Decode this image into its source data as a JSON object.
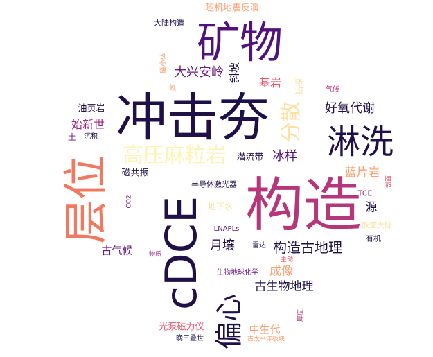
{
  "word_cloud": {
    "words": [
      {
        "text": "构造",
        "color": "#b5367a"
      },
      {
        "text": "冲击夯",
        "color": "#1f1147"
      },
      {
        "text": "cDCE",
        "color": "#1f1147"
      },
      {
        "text": "层位",
        "color": "#f1795f"
      },
      {
        "text": "矿物",
        "color": "#50127b"
      },
      {
        "text": "淋洗",
        "color": "#1f1147"
      },
      {
        "text": "高压麻粒岩",
        "color": "#fcf4b6"
      },
      {
        "text": "偏心",
        "color": "#1f1147"
      },
      {
        "text": "分散",
        "color": "#fce1a4"
      },
      {
        "text": "构造古地理",
        "color": "#1f1147"
      },
      {
        "text": "好氧代谢",
        "color": "#1f1147"
      },
      {
        "text": "大兴安岭",
        "color": "#6a1c81"
      },
      {
        "text": "古生物地理",
        "color": "#1f1147"
      },
      {
        "text": "蓝片岩",
        "color": "#f8a070"
      },
      {
        "text": "月壤",
        "color": "#1f1147"
      },
      {
        "text": "冰样",
        "color": "#50127b"
      },
      {
        "text": "始新世",
        "color": "#9c2e7f"
      },
      {
        "text": "成像",
        "color": "#f8a070"
      },
      {
        "text": "中生代",
        "color": "#f8a070"
      },
      {
        "text": "源",
        "color": "#1f1147"
      },
      {
        "text": "基岩",
        "color": "#e8566b"
      },
      {
        "text": "古气候",
        "color": "#6a1c81"
      },
      {
        "text": "斜坡",
        "color": "#1f1147"
      },
      {
        "text": "潜流带",
        "color": "#1f1147"
      },
      {
        "text": "油页岩",
        "color": "#1f1147"
      },
      {
        "text": "磁共振",
        "color": "#1f1147"
      },
      {
        "text": "随机地震反演",
        "color": "#f8a070"
      },
      {
        "text": "光泵磁力仪",
        "color": "#e8566b"
      },
      {
        "text": "地下水",
        "color": "#fce1a4"
      },
      {
        "text": "半导体激光器",
        "color": "#1f1147"
      },
      {
        "text": "钻探",
        "color": "#fce1a4"
      },
      {
        "text": "大陆构造",
        "color": "#1f1147"
      },
      {
        "text": "欧亚大陆",
        "color": "#fce1a4"
      },
      {
        "text": "有机",
        "color": "#1f1147"
      },
      {
        "text": "LNAPLs",
        "color": "#50127b"
      },
      {
        "text": "生物地球化学",
        "color": "#6a1c81"
      },
      {
        "text": "TCE",
        "color": "#9c2e7f"
      },
      {
        "text": "雷达",
        "color": "#1f1147"
      },
      {
        "text": "晚三叠世",
        "color": "#1f1147"
      },
      {
        "text": "古太平洋板块",
        "color": "#f8a070"
      },
      {
        "text": "气候",
        "color": "#b5367a"
      },
      {
        "text": "土",
        "color": "#6a1c81"
      },
      {
        "text": "沉积",
        "color": "#1f1147"
      },
      {
        "text": "氮",
        "color": "#f8a070"
      },
      {
        "text": "磁小体",
        "color": "#f8a070"
      },
      {
        "text": "CO2",
        "color": "#6a1c81"
      },
      {
        "text": "物质",
        "color": "#9c2e7f"
      },
      {
        "text": "主动",
        "color": "#e8566b"
      },
      {
        "text": "剖面",
        "color": "#e8566b"
      },
      {
        "text": "厚度",
        "color": "#b5367a"
      }
    ]
  }
}
